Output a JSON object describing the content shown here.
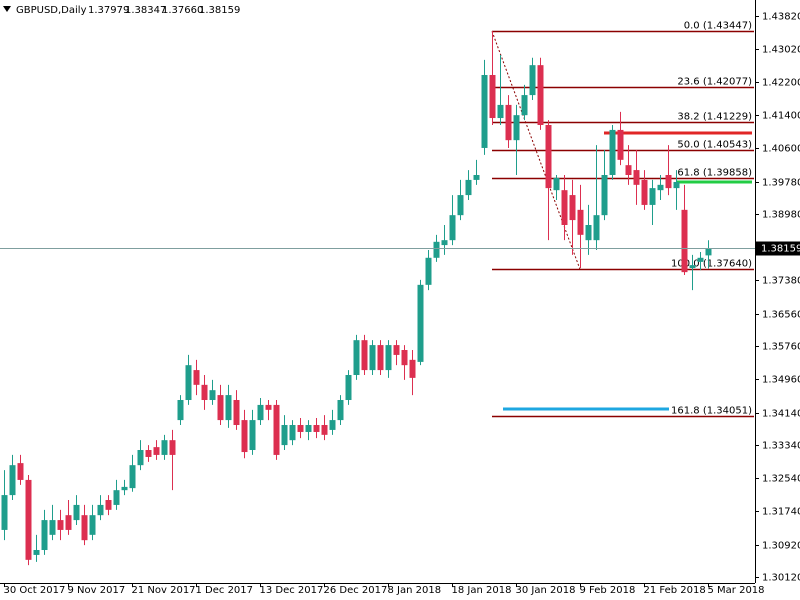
{
  "chart_data": {
    "type": "candlestick",
    "symbol": "GBPUSD,Daily",
    "ohlc_labels": [
      "1.37979",
      "1.38347",
      "1.37660",
      "1.38159"
    ],
    "categories": [
      "30 Oct 2017",
      null,
      null,
      null,
      null,
      null,
      null,
      null,
      "9 Nov 2017",
      null,
      null,
      null,
      null,
      null,
      null,
      null,
      "21 Nov 2017",
      null,
      null,
      null,
      null,
      null,
      null,
      null,
      "1 Dec 2017",
      null,
      null,
      null,
      null,
      null,
      null,
      null,
      "13 Dec 2017",
      null,
      null,
      null,
      null,
      null,
      null,
      null,
      "26 Dec 2017",
      null,
      null,
      null,
      null,
      null,
      null,
      null,
      "8 Jan 2018",
      null,
      null,
      null,
      null,
      null,
      null,
      null,
      "18 Jan 2018",
      null,
      null,
      null,
      null,
      null,
      null,
      null,
      "30 Jan 2018",
      null,
      null,
      null,
      null,
      null,
      null,
      null,
      "9 Feb 2018",
      null,
      null,
      null,
      null,
      null,
      null,
      null,
      "21 Feb 2018",
      null,
      null,
      null,
      null,
      null,
      null,
      null,
      "5 Mar 2018"
    ],
    "open": [
      1.3128,
      1.3213,
      1.3291,
      1.325,
      1.3067,
      1.3079,
      1.3116,
      1.3152,
      1.3164,
      1.3152,
      1.3164,
      1.3116,
      1.3164,
      1.3201,
      1.3189,
      1.3225,
      1.323,
      1.3286,
      1.3323,
      1.333,
      1.3311,
      1.3347,
      1.3396,
      1.3445,
      1.3518,
      1.3482,
      1.3445,
      1.3457,
      1.3396,
      1.3445,
      1.3396,
      1.3323,
      1.3396,
      1.3433,
      1.3433,
      1.3335,
      1.3347,
      1.3384,
      1.3367,
      1.3384,
      1.3384,
      1.3372,
      1.3396,
      1.3445,
      1.3506,
      1.3591,
      1.3518,
      1.3579,
      1.3518,
      1.3579,
      1.3567,
      1.3543,
      1.3538,
      1.3726,
      1.3792,
      1.3823,
      1.3835,
      1.3896,
      1.3945,
      1.3982,
      1.406,
      1.4238,
      1.4133,
      1.4165,
      1.4079,
      1.414,
      1.4189,
      1.4262,
      1.4116,
      1.3957,
      1.3957,
      1.3945,
      1.3909,
      1.3835,
      1.3835,
      1.3896,
      1.3994,
      1.4104,
      1.4018,
      1.4006,
      1.3982,
      1.3921,
      1.3957,
      1.3994,
      1.3962,
      1.3909,
      1.3767,
      1.3782,
      1.37979
    ],
    "high": [
      1.3274,
      1.3311,
      1.3311,
      1.3262,
      1.3116,
      1.3177,
      1.3189,
      1.3177,
      1.3201,
      1.3213,
      1.3189,
      1.3189,
      1.3213,
      1.3213,
      1.325,
      1.325,
      1.3311,
      1.3347,
      1.3335,
      1.3347,
      1.336,
      1.3372,
      1.3457,
      1.3555,
      1.3543,
      1.3506,
      1.3494,
      1.3482,
      1.3482,
      1.3469,
      1.3421,
      1.3421,
      1.345,
      1.3445,
      1.3445,
      1.3408,
      1.3396,
      1.3401,
      1.3396,
      1.3401,
      1.3408,
      1.3421,
      1.3457,
      1.3518,
      1.3604,
      1.3604,
      1.3591,
      1.3591,
      1.3591,
      1.3591,
      1.3579,
      1.3567,
      1.3738,
      1.3811,
      1.3848,
      1.3872,
      1.3945,
      1.3982,
      1.4006,
      1.4031,
      1.4275,
      1.4345,
      1.4287,
      1.4189,
      1.4165,
      1.4214,
      1.428,
      1.428,
      1.4128,
      1.3994,
      1.3994,
      1.3982,
      1.397,
      1.3921,
      1.4067,
      1.4055,
      1.4116,
      1.4148,
      1.4067,
      1.4055,
      1.4006,
      1.3982,
      1.3994,
      1.4067,
      1.4006,
      1.397,
      1.3799,
      1.3806,
      1.38347
    ],
    "low": [
      1.3103,
      1.3201,
      1.3238,
      1.3042,
      1.305,
      1.3067,
      1.3103,
      1.3103,
      1.3116,
      1.314,
      1.3091,
      1.3103,
      1.3152,
      1.3164,
      1.3177,
      1.3213,
      1.3221,
      1.3274,
      1.3294,
      1.3299,
      1.3299,
      1.3225,
      1.3384,
      1.3433,
      1.3457,
      1.3421,
      1.3433,
      1.3384,
      1.3377,
      1.3372,
      1.3303,
      1.3311,
      1.3384,
      1.3396,
      1.3299,
      1.3323,
      1.3335,
      1.3352,
      1.3347,
      1.3352,
      1.3347,
      1.336,
      1.3384,
      1.3433,
      1.3494,
      1.3506,
      1.3506,
      1.3506,
      1.3499,
      1.353,
      1.3494,
      1.3457,
      1.353,
      1.3713,
      1.3782,
      1.3799,
      1.3823,
      1.3884,
      1.3933,
      1.397,
      1.4043,
      1.4116,
      1.4116,
      1.406,
      1.3994,
      1.4128,
      1.4177,
      1.4104,
      1.3835,
      1.3933,
      1.3835,
      1.3799,
      1.3767,
      1.3799,
      1.3811,
      1.3884,
      1.3982,
      1.4018,
      1.397,
      1.3921,
      1.3909,
      1.3872,
      1.3933,
      1.3945,
      1.3909,
      1.375,
      1.3713,
      1.3762,
      1.3766
    ],
    "close": [
      1.3213,
      1.3286,
      1.325,
      1.3055,
      1.3079,
      1.3152,
      1.3152,
      1.3128,
      1.3128,
      1.3189,
      1.3103,
      1.3164,
      1.3189,
      1.3177,
      1.3225,
      1.3233,
      1.3286,
      1.3323,
      1.3306,
      1.3311,
      1.3347,
      1.3311,
      1.3445,
      1.353,
      1.3482,
      1.3445,
      1.3469,
      1.3396,
      1.3457,
      1.3384,
      1.3318,
      1.3396,
      1.3433,
      1.3421,
      1.3311,
      1.3384,
      1.3384,
      1.3367,
      1.3384,
      1.3367,
      1.336,
      1.3396,
      1.3445,
      1.3506,
      1.3591,
      1.3518,
      1.3579,
      1.3518,
      1.3579,
      1.3555,
      1.353,
      1.3499,
      1.3726,
      1.3792,
      1.3831,
      1.3835,
      1.3896,
      1.3945,
      1.3982,
      1.3994,
      1.4238,
      1.4133,
      1.4165,
      1.4079,
      1.414,
      1.4189,
      1.4262,
      1.4116,
      1.3962,
      1.3987,
      1.3872,
      1.3884,
      1.3848,
      1.3872,
      1.3896,
      1.3994,
      1.4104,
      1.4031,
      1.3994,
      1.397,
      1.3921,
      1.3962,
      1.397,
      1.3962,
      1.3977,
      1.3757,
      1.3774,
      1.3792,
      1.38159
    ],
    "colors": {
      "bull": "#1f9e8c",
      "bear": "#dc2f50",
      "fib": "#8b0000",
      "price_line": "#7f9f9f"
    },
    "ylim": [
      1.29985,
      1.4421
    ],
    "yticks": [
      {
        "value": 1.4382,
        "label": "1.43820"
      },
      {
        "value": 1.4302,
        "label": "1.43020"
      },
      {
        "value": 1.422,
        "label": "1.42200"
      },
      {
        "value": 1.414,
        "label": "1.41400"
      },
      {
        "value": 1.406,
        "label": "1.40600"
      },
      {
        "value": 1.3978,
        "label": "1.39780"
      },
      {
        "value": 1.3898,
        "label": "1.38980"
      },
      {
        "value": 1.3738,
        "label": "1.37380"
      },
      {
        "value": 1.3656,
        "label": "1.36560"
      },
      {
        "value": 1.3576,
        "label": "1.35760"
      },
      {
        "value": 1.3496,
        "label": "1.34960"
      },
      {
        "value": 1.3414,
        "label": "1.34140"
      },
      {
        "value": 1.3334,
        "label": "1.33340"
      },
      {
        "value": 1.3254,
        "label": "1.32540"
      },
      {
        "value": 1.3174,
        "label": "1.31740"
      },
      {
        "value": 1.3092,
        "label": "1.30920"
      },
      {
        "value": 1.3012,
        "label": "1.30120"
      }
    ],
    "grid": false,
    "fib_levels": [
      {
        "value": 1.43447,
        "label": "0.0 (1.43447)"
      },
      {
        "value": 1.42077,
        "label": "23.6 (1.42077)"
      },
      {
        "value": 1.41229,
        "label": "38.2 (1.41229)"
      },
      {
        "value": 1.40543,
        "label": "50.0 (1.40543)"
      },
      {
        "value": 1.39858,
        "label": "61.8 (1.39858)"
      },
      {
        "value": 1.3764,
        "label": "100.0 (1.37640)"
      },
      {
        "value": 1.34051,
        "label": "161.8 (1.34051)"
      }
    ]
  }
}
